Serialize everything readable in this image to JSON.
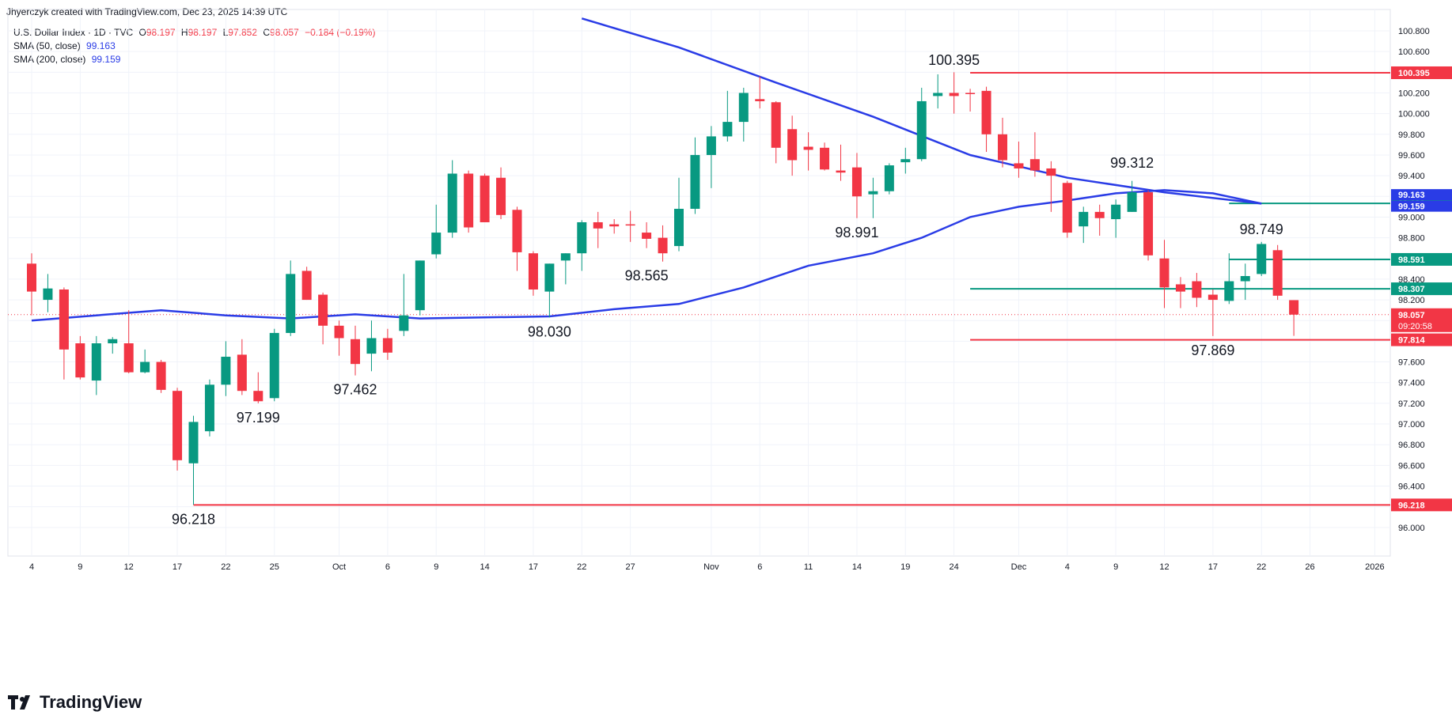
{
  "header": {
    "attribution": "Jhyerczyk created with TradingView.com, Dec 23, 2025 14:39 UTC"
  },
  "legend": {
    "symbol": "U.S. Dollar Index · 1D · TVC",
    "open_label": "O",
    "open": "98.197",
    "high_label": "H",
    "high": "98.197",
    "low_label": "L",
    "low": "97.852",
    "close_label": "C",
    "close": "98.057",
    "change": "−0.184 (−0.19%)",
    "sma50_label": "SMA (50, close)",
    "sma50_value": "99.163",
    "sma200_label": "SMA (200, close)",
    "sma200_value": "99.159"
  },
  "footer": {
    "brand": "TradingView"
  },
  "colors": {
    "up": "#089981",
    "down": "#f23645",
    "sma": "#2a3ce6",
    "level_green": "#089981",
    "level_red": "#f23645"
  },
  "chart_data": {
    "type": "candlestick",
    "ylim": [
      95.8,
      100.93
    ],
    "y_ticks": [
      "96.000",
      "96.200",
      "96.400",
      "96.600",
      "96.800",
      "97.000",
      "97.200",
      "97.400",
      "97.600",
      "97.800",
      "98.000",
      "98.200",
      "98.400",
      "98.600",
      "98.800",
      "99.000",
      "99.200",
      "99.400",
      "99.600",
      "99.800",
      "100.000",
      "100.200",
      "100.400",
      "100.600",
      "100.800"
    ],
    "x_ticks": [
      {
        "i": 0,
        "label": "4"
      },
      {
        "i": 3,
        "label": "9"
      },
      {
        "i": 6,
        "label": "12"
      },
      {
        "i": 9,
        "label": "17"
      },
      {
        "i": 12,
        "label": "22"
      },
      {
        "i": 15,
        "label": "25"
      },
      {
        "i": 19,
        "label": "Oct"
      },
      {
        "i": 22,
        "label": "6"
      },
      {
        "i": 25,
        "label": "9"
      },
      {
        "i": 28,
        "label": "14"
      },
      {
        "i": 31,
        "label": "17"
      },
      {
        "i": 34,
        "label": "22"
      },
      {
        "i": 37,
        "label": "27"
      },
      {
        "i": 42,
        "label": "Nov"
      },
      {
        "i": 45,
        "label": "6"
      },
      {
        "i": 48,
        "label": "11"
      },
      {
        "i": 51,
        "label": "14"
      },
      {
        "i": 54,
        "label": "19"
      },
      {
        "i": 57,
        "label": "24"
      },
      {
        "i": 61,
        "label": "Dec"
      },
      {
        "i": 64,
        "label": "4"
      },
      {
        "i": 67,
        "label": "9"
      },
      {
        "i": 70,
        "label": "12"
      },
      {
        "i": 73,
        "label": "17"
      },
      {
        "i": 76,
        "label": "22"
      },
      {
        "i": 79,
        "label": "26"
      },
      {
        "i": 83,
        "label": "2026"
      }
    ],
    "candles": [
      {
        "o": 98.55,
        "h": 98.65,
        "l": 98.05,
        "c": 98.28
      },
      {
        "o": 98.2,
        "h": 98.45,
        "l": 98.08,
        "c": 98.31
      },
      {
        "o": 98.3,
        "h": 98.32,
        "l": 97.43,
        "c": 97.72
      },
      {
        "o": 97.78,
        "h": 97.85,
        "l": 97.43,
        "c": 97.45
      },
      {
        "o": 97.42,
        "h": 97.85,
        "l": 97.28,
        "c": 97.78
      },
      {
        "o": 97.78,
        "h": 97.84,
        "l": 97.68,
        "c": 97.82
      },
      {
        "o": 97.78,
        "h": 98.1,
        "l": 97.49,
        "c": 97.5
      },
      {
        "o": 97.5,
        "h": 97.72,
        "l": 97.49,
        "c": 97.6
      },
      {
        "o": 97.6,
        "h": 97.62,
        "l": 97.3,
        "c": 97.33
      },
      {
        "o": 97.32,
        "h": 97.35,
        "l": 96.55,
        "c": 96.65
      },
      {
        "o": 96.62,
        "h": 97.08,
        "l": 96.22,
        "c": 97.02
      },
      {
        "o": 96.93,
        "h": 97.43,
        "l": 96.88,
        "c": 97.38
      },
      {
        "o": 97.38,
        "h": 97.8,
        "l": 97.27,
        "c": 97.65
      },
      {
        "o": 97.67,
        "h": 97.82,
        "l": 97.28,
        "c": 97.32
      },
      {
        "o": 97.32,
        "h": 97.5,
        "l": 97.2,
        "c": 97.22
      },
      {
        "o": 97.25,
        "h": 97.92,
        "l": 97.22,
        "c": 97.88
      },
      {
        "o": 97.88,
        "h": 98.58,
        "l": 97.85,
        "c": 98.45
      },
      {
        "o": 98.48,
        "h": 98.52,
        "l": 98.2,
        "c": 98.2
      },
      {
        "o": 98.25,
        "h": 98.27,
        "l": 97.77,
        "c": 97.95
      },
      {
        "o": 97.95,
        "h": 98.0,
        "l": 97.66,
        "c": 97.83
      },
      {
        "o": 97.82,
        "h": 97.95,
        "l": 97.47,
        "c": 97.58
      },
      {
        "o": 97.68,
        "h": 98.0,
        "l": 97.51,
        "c": 97.83
      },
      {
        "o": 97.83,
        "h": 97.92,
        "l": 97.62,
        "c": 97.69
      },
      {
        "o": 97.9,
        "h": 98.45,
        "l": 97.85,
        "c": 98.05
      },
      {
        "o": 98.1,
        "h": 98.58,
        "l": 98.05,
        "c": 98.58
      },
      {
        "o": 98.64,
        "h": 99.12,
        "l": 98.6,
        "c": 98.85
      },
      {
        "o": 98.85,
        "h": 99.55,
        "l": 98.8,
        "c": 99.42
      },
      {
        "o": 99.42,
        "h": 99.45,
        "l": 98.85,
        "c": 98.9
      },
      {
        "o": 99.4,
        "h": 99.42,
        "l": 98.95,
        "c": 98.95
      },
      {
        "o": 99.38,
        "h": 99.48,
        "l": 98.98,
        "c": 99.02
      },
      {
        "o": 99.07,
        "h": 99.1,
        "l": 98.48,
        "c": 98.66
      },
      {
        "o": 98.65,
        "h": 98.67,
        "l": 98.24,
        "c": 98.3
      },
      {
        "o": 98.28,
        "h": 98.55,
        "l": 98.03,
        "c": 98.55
      },
      {
        "o": 98.58,
        "h": 98.65,
        "l": 98.35,
        "c": 98.65
      },
      {
        "o": 98.65,
        "h": 98.97,
        "l": 98.48,
        "c": 98.95
      },
      {
        "o": 98.95,
        "h": 99.05,
        "l": 98.7,
        "c": 98.89
      },
      {
        "o": 98.93,
        "h": 98.98,
        "l": 98.84,
        "c": 98.91
      },
      {
        "o": 98.93,
        "h": 99.06,
        "l": 98.76,
        "c": 98.92
      },
      {
        "o": 98.85,
        "h": 98.95,
        "l": 98.7,
        "c": 98.79
      },
      {
        "o": 98.8,
        "h": 98.92,
        "l": 98.57,
        "c": 98.65
      },
      {
        "o": 98.72,
        "h": 99.38,
        "l": 98.67,
        "c": 99.08
      },
      {
        "o": 99.08,
        "h": 99.77,
        "l": 99.03,
        "c": 99.6
      },
      {
        "o": 99.6,
        "h": 99.88,
        "l": 99.28,
        "c": 99.78
      },
      {
        "o": 99.78,
        "h": 100.22,
        "l": 99.73,
        "c": 99.92
      },
      {
        "o": 99.92,
        "h": 100.25,
        "l": 99.73,
        "c": 100.2
      },
      {
        "o": 100.14,
        "h": 100.36,
        "l": 100.05,
        "c": 100.12
      },
      {
        "o": 100.11,
        "h": 100.12,
        "l": 99.52,
        "c": 99.67
      },
      {
        "o": 99.85,
        "h": 99.98,
        "l": 99.4,
        "c": 99.55
      },
      {
        "o": 99.68,
        "h": 99.82,
        "l": 99.45,
        "c": 99.65
      },
      {
        "o": 99.67,
        "h": 99.72,
        "l": 99.45,
        "c": 99.46
      },
      {
        "o": 99.45,
        "h": 99.7,
        "l": 99.35,
        "c": 99.43
      },
      {
        "o": 99.48,
        "h": 99.62,
        "l": 98.99,
        "c": 99.2
      },
      {
        "o": 99.22,
        "h": 99.38,
        "l": 98.99,
        "c": 99.25
      },
      {
        "o": 99.25,
        "h": 99.52,
        "l": 99.22,
        "c": 99.5
      },
      {
        "o": 99.53,
        "h": 99.67,
        "l": 99.42,
        "c": 99.56
      },
      {
        "o": 99.56,
        "h": 100.25,
        "l": 99.54,
        "c": 100.12
      },
      {
        "o": 100.17,
        "h": 100.38,
        "l": 100.05,
        "c": 100.2
      },
      {
        "o": 100.2,
        "h": 100.4,
        "l": 100.0,
        "c": 100.17
      },
      {
        "o": 100.2,
        "h": 100.24,
        "l": 100.02,
        "c": 100.19
      },
      {
        "o": 100.22,
        "h": 100.26,
        "l": 99.63,
        "c": 99.8
      },
      {
        "o": 99.8,
        "h": 99.96,
        "l": 99.48,
        "c": 99.55
      },
      {
        "o": 99.52,
        "h": 99.73,
        "l": 99.38,
        "c": 99.47
      },
      {
        "o": 99.56,
        "h": 99.82,
        "l": 99.39,
        "c": 99.45
      },
      {
        "o": 99.47,
        "h": 99.54,
        "l": 99.05,
        "c": 99.4
      },
      {
        "o": 99.33,
        "h": 99.35,
        "l": 98.8,
        "c": 98.85
      },
      {
        "o": 98.91,
        "h": 99.1,
        "l": 98.75,
        "c": 99.05
      },
      {
        "o": 99.05,
        "h": 99.12,
        "l": 98.82,
        "c": 98.99
      },
      {
        "o": 98.98,
        "h": 99.17,
        "l": 98.8,
        "c": 99.12
      },
      {
        "o": 99.05,
        "h": 99.35,
        "l": 99.05,
        "c": 99.24
      },
      {
        "o": 99.24,
        "h": 99.26,
        "l": 98.58,
        "c": 98.63
      },
      {
        "o": 98.6,
        "h": 98.78,
        "l": 98.12,
        "c": 98.32
      },
      {
        "o": 98.35,
        "h": 98.42,
        "l": 98.12,
        "c": 98.28
      },
      {
        "o": 98.38,
        "h": 98.46,
        "l": 98.13,
        "c": 98.22
      },
      {
        "o": 98.25,
        "h": 98.3,
        "l": 97.85,
        "c": 98.2
      },
      {
        "o": 98.19,
        "h": 98.65,
        "l": 98.16,
        "c": 98.38
      },
      {
        "o": 98.38,
        "h": 98.55,
        "l": 98.2,
        "c": 98.43
      },
      {
        "o": 98.45,
        "h": 98.76,
        "l": 98.43,
        "c": 98.74
      },
      {
        "o": 98.68,
        "h": 98.73,
        "l": 98.2,
        "c": 98.24
      },
      {
        "o": 98.197,
        "h": 98.197,
        "l": 97.852,
        "c": 98.057
      }
    ],
    "sma_fast": {
      "name": "SMA (50, close)",
      "value": 99.163,
      "points": [
        [
          0,
          98.0
        ],
        [
          4,
          98.05
        ],
        [
          8,
          98.1
        ],
        [
          12,
          98.05
        ],
        [
          16,
          98.02
        ],
        [
          20,
          98.06
        ],
        [
          24,
          98.02
        ],
        [
          28,
          98.03
        ],
        [
          32,
          98.04
        ],
        [
          36,
          98.11
        ],
        [
          40,
          98.16
        ],
        [
          44,
          98.32
        ],
        [
          48,
          98.53
        ],
        [
          52,
          98.65
        ],
        [
          55,
          98.8
        ],
        [
          58,
          99.0
        ],
        [
          61,
          99.1
        ],
        [
          64,
          99.16
        ],
        [
          67,
          99.23
        ],
        [
          70,
          99.26
        ],
        [
          73,
          99.23
        ],
        [
          76,
          99.13
        ]
      ]
    },
    "sma_slow": {
      "name": "SMA (200, close)",
      "value": 99.159,
      "points": [
        [
          34,
          100.92
        ],
        [
          40,
          100.64
        ],
        [
          46,
          100.3
        ],
        [
          52,
          99.97
        ],
        [
          58,
          99.6
        ],
        [
          64,
          99.38
        ],
        [
          70,
          99.24
        ],
        [
          76,
          99.13
        ]
      ]
    },
    "levels": [
      {
        "value": 100.395,
        "label": "100.395",
        "color": "red",
        "from": 58
      },
      {
        "value": 99.132,
        "label": "99.132",
        "color": "green",
        "from": 74
      },
      {
        "value": 98.591,
        "label": "98.591",
        "color": "green",
        "from": 74
      },
      {
        "value": 98.307,
        "label": "98.307",
        "color": "green",
        "from": 58
      },
      {
        "value": 97.814,
        "label": "97.814",
        "color": "red",
        "from": 58
      },
      {
        "value": 96.218,
        "label": "96.218",
        "color": "red",
        "from": 10
      }
    ],
    "last_price": {
      "value": 98.057,
      "label": "98.057",
      "countdown": "09:20:58"
    },
    "price_tags": [
      {
        "value": 99.163,
        "label": "99.163",
        "color": "sma",
        "offset": -7
      },
      {
        "value": 99.159,
        "label": "99.159",
        "color": "sma",
        "offset": 7
      }
    ],
    "annotations": [
      {
        "i": 10,
        "value": 96.218,
        "label": "96.218",
        "pos": "below"
      },
      {
        "i": 14,
        "value": 97.2,
        "label": "97.199",
        "pos": "below"
      },
      {
        "i": 20,
        "value": 97.47,
        "label": "97.462",
        "pos": "below"
      },
      {
        "i": 32,
        "value": 98.03,
        "label": "98.030",
        "pos": "below"
      },
      {
        "i": 38,
        "value": 98.57,
        "label": "98.565",
        "pos": "below"
      },
      {
        "i": 51,
        "value": 98.99,
        "label": "98.991",
        "pos": "below"
      },
      {
        "i": 57,
        "value": 100.395,
        "label": "100.395",
        "pos": "above"
      },
      {
        "i": 68,
        "value": 99.4,
        "label": "99.312",
        "pos": "above"
      },
      {
        "i": 76,
        "value": 98.76,
        "label": "98.749",
        "pos": "above"
      },
      {
        "i": 73,
        "value": 97.85,
        "label": "97.869",
        "pos": "below"
      }
    ]
  }
}
